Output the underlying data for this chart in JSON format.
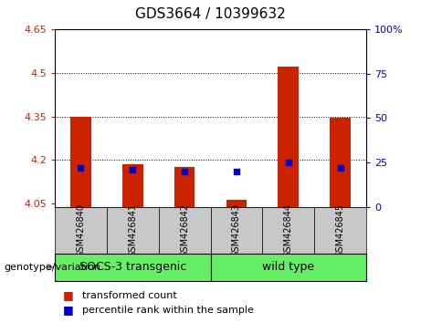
{
  "title": "GDS3664 / 10399632",
  "samples": [
    "GSM426840",
    "GSM426841",
    "GSM426842",
    "GSM426843",
    "GSM426844",
    "GSM426845"
  ],
  "red_values": [
    4.35,
    4.185,
    4.175,
    4.065,
    4.52,
    4.345
  ],
  "blue_percentiles": [
    22,
    21,
    20,
    20,
    25,
    22
  ],
  "ylim_left": [
    4.04,
    4.65
  ],
  "ylim_right": [
    0,
    100
  ],
  "yticks_left": [
    4.05,
    4.2,
    4.35,
    4.5,
    4.65
  ],
  "yticks_right": [
    0,
    25,
    50,
    75,
    100
  ],
  "baseline": 4.04,
  "group1_label": "SOCS-3 transgenic",
  "group2_label": "wild type",
  "genotype_label": "genotype/variation",
  "legend1": "transformed count",
  "legend2": "percentile rank within the sample",
  "bar_color": "#cc2200",
  "dot_color": "#0000cc",
  "group_bg_color": "#66ee66",
  "sample_bg_color": "#c8c8c8",
  "title_fontsize": 11,
  "tick_fontsize": 8,
  "sample_fontsize": 7,
  "group_fontsize": 9,
  "legend_fontsize": 8,
  "genotype_fontsize": 8
}
